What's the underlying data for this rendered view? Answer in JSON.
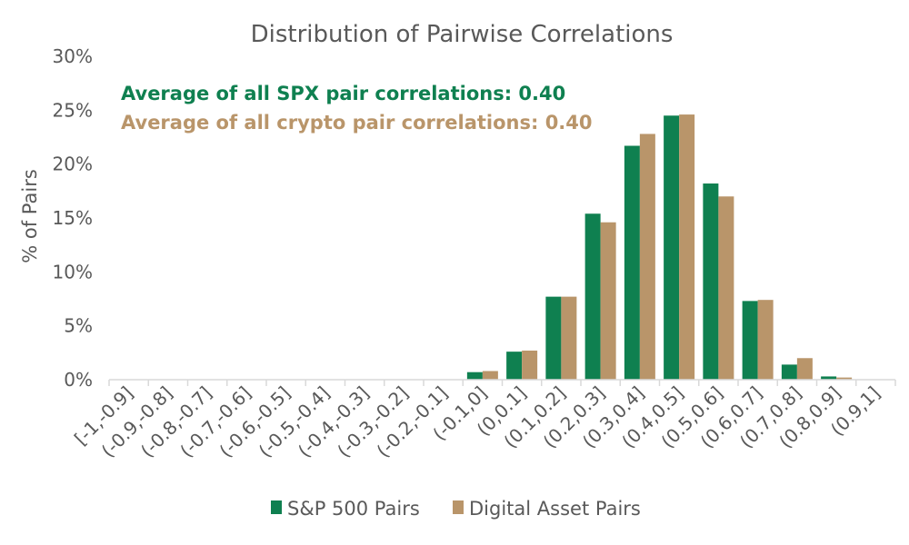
{
  "chart_data": {
    "type": "bar",
    "title": "Distribution of Pairwise Correlations",
    "ylabel": "% of Pairs",
    "xlabel": "",
    "ylim": [
      0,
      30
    ],
    "yticks": [
      "0%",
      "5%",
      "10%",
      "15%",
      "20%",
      "25%",
      "30%"
    ],
    "categories": [
      "[-1,-0.9]",
      "(-0.9,-0.8]",
      "(-0.8,-0.7]",
      "(-0.7,-0.6]",
      "(-0.6,-0.5]",
      "(-0.5,-0.4]",
      "(-0.4,-0.3]",
      "(-0.3,-0.2]",
      "(-0.2,-0.1]",
      "(-0.1,0]",
      "(0,0.1]",
      "(0.1,0.2]",
      "(0.2,0.3]",
      "(0.3,0.4]",
      "(0.4,0.5]",
      "(0.5,0.6]",
      "(0.6,0.7]",
      "(0.7,0.8]",
      "(0.8,0.9]",
      "(0.9,1]"
    ],
    "series": [
      {
        "name": "S&P 500 Pairs",
        "color": "#0f8050",
        "values": [
          0,
          0,
          0,
          0,
          0,
          0,
          0,
          0,
          0,
          0.7,
          2.6,
          7.7,
          15.4,
          21.7,
          24.5,
          18.2,
          7.3,
          1.4,
          0.3,
          0
        ]
      },
      {
        "name": "Digital Asset Pairs",
        "color": "#b9956a",
        "values": [
          0,
          0,
          0,
          0,
          0,
          0,
          0,
          0,
          0,
          0.8,
          2.7,
          7.7,
          14.6,
          22.8,
          24.6,
          17.0,
          7.4,
          2.0,
          0.2,
          0
        ]
      }
    ],
    "annotations": [
      {
        "text": "Average of all SPX pair correlations: 0.40",
        "color": "#0f8050"
      },
      {
        "text": "Average of all crypto pair correlations: 0.40",
        "color": "#b9956a"
      }
    ],
    "legend_position": "bottom",
    "grid": false
  }
}
